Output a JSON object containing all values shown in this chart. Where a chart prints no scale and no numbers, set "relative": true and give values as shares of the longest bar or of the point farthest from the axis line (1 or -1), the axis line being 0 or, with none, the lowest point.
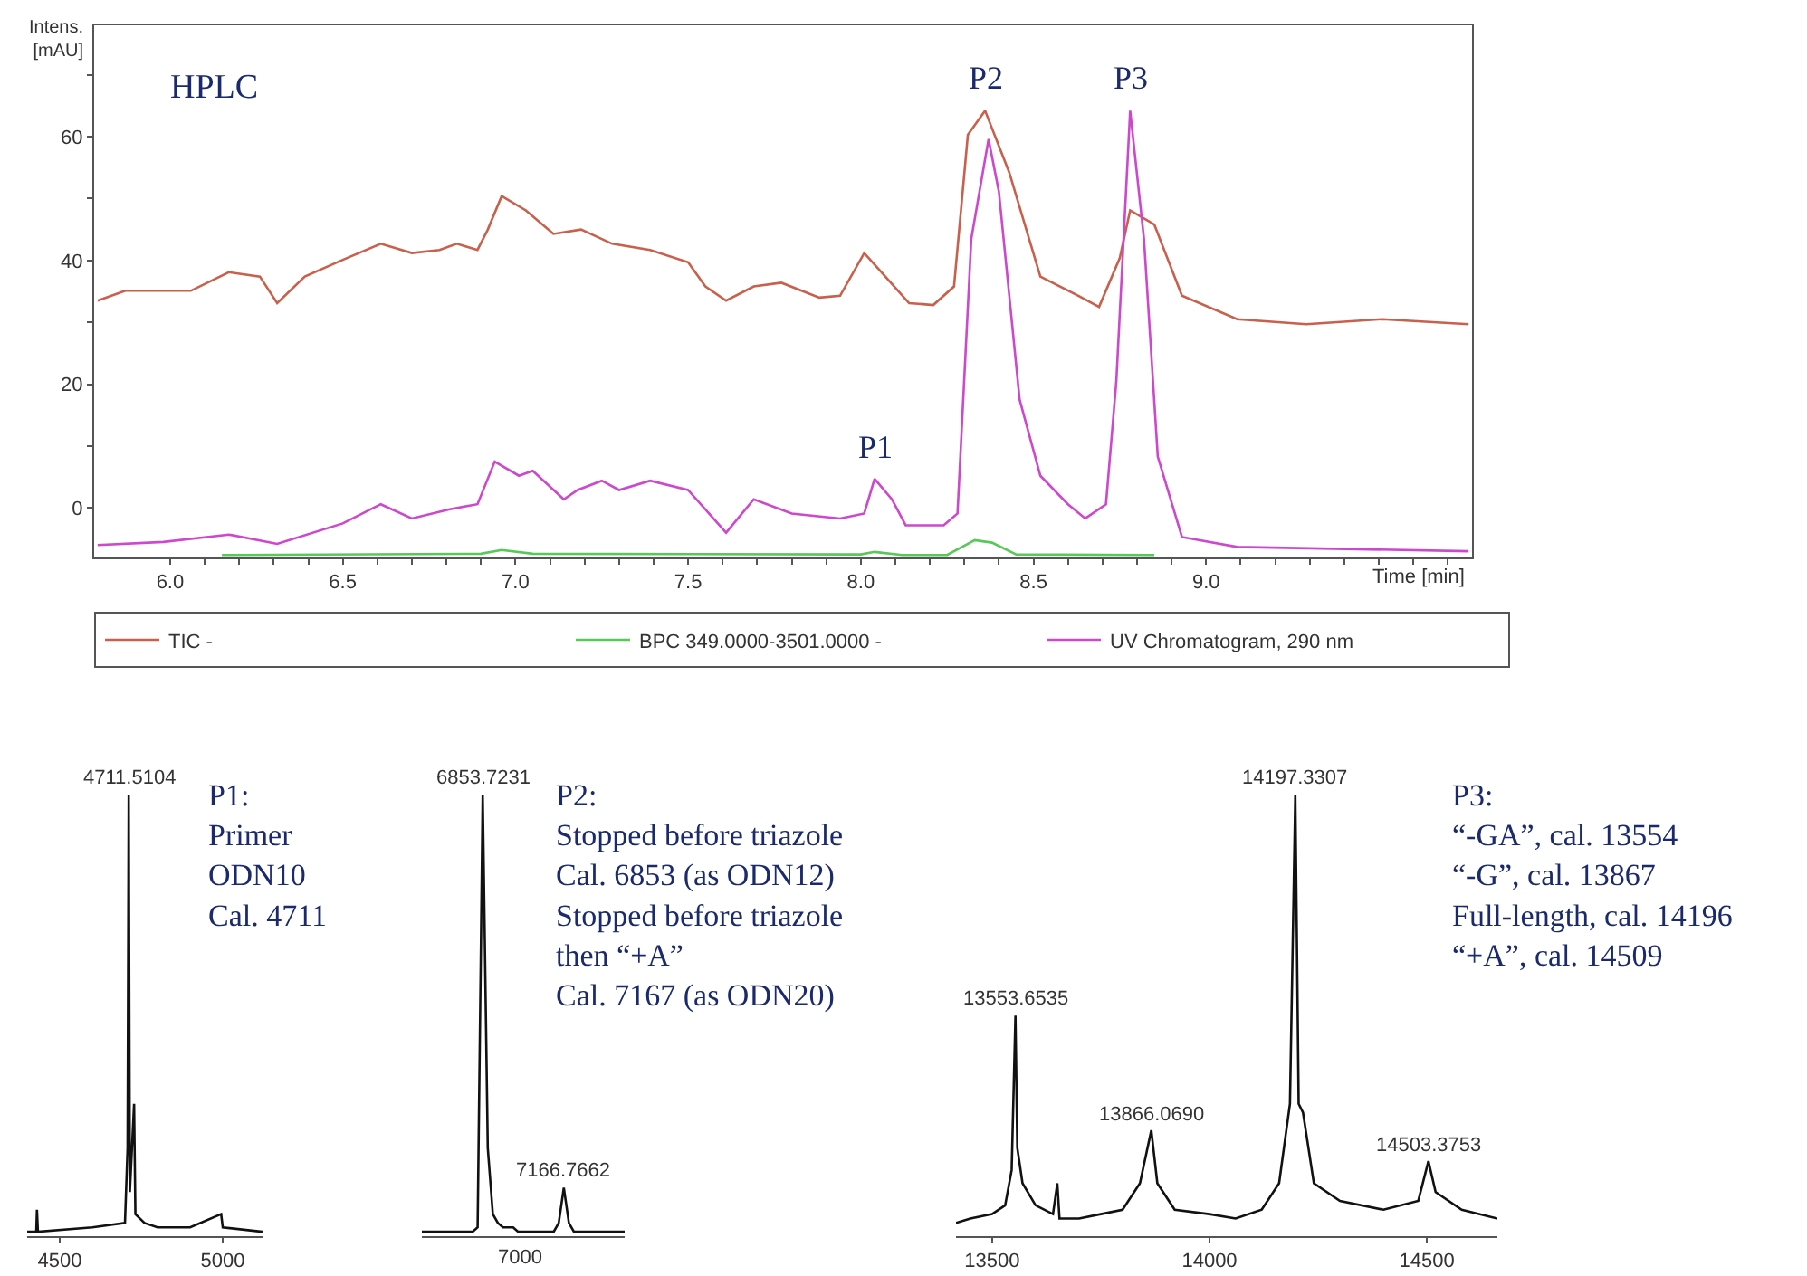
{
  "chart_data": [
    {
      "type": "line",
      "ylabel": "Intens.\n[mAU]",
      "xlabel": "Time [min]",
      "xlim": [
        5.78,
        9.77
      ],
      "ylim": [
        -8,
        78
      ],
      "xticks": [
        {
          "value": 6,
          "label": "6.0"
        },
        {
          "value": 6.1,
          "label": null
        },
        {
          "value": 6.2,
          "label": null
        },
        {
          "value": 6.3,
          "label": null
        },
        {
          "value": 6.4,
          "label": null
        },
        {
          "value": 6.5,
          "label": "6.5"
        },
        {
          "value": 6.6,
          "label": null
        },
        {
          "value": 6.7,
          "label": null
        },
        {
          "value": 6.8,
          "label": null
        },
        {
          "value": 6.9,
          "label": null
        },
        {
          "value": 7,
          "label": "7.0"
        },
        {
          "value": 7.1,
          "label": null
        },
        {
          "value": 7.2,
          "label": null
        },
        {
          "value": 7.3,
          "label": null
        },
        {
          "value": 7.4,
          "label": null
        },
        {
          "value": 7.5,
          "label": "7.5"
        },
        {
          "value": 7.6,
          "label": null
        },
        {
          "value": 7.7,
          "label": null
        },
        {
          "value": 7.8,
          "label": null
        },
        {
          "value": 7.9,
          "label": null
        },
        {
          "value": 8,
          "label": "8.0"
        },
        {
          "value": 8.1,
          "label": null
        },
        {
          "value": 8.2,
          "label": null
        },
        {
          "value": 8.3,
          "label": null
        },
        {
          "value": 8.4,
          "label": null
        },
        {
          "value": 8.5,
          "label": "8.5"
        },
        {
          "value": 8.6,
          "label": null
        },
        {
          "value": 8.7,
          "label": null
        },
        {
          "value": 8.8,
          "label": null
        },
        {
          "value": 8.9,
          "label": null
        },
        {
          "value": 9,
          "label": "9.0"
        },
        {
          "value": 9.1,
          "label": null
        },
        {
          "value": 9.2,
          "label": null
        },
        {
          "value": 9.3,
          "label": null
        },
        {
          "value": 9.4,
          "label": null
        },
        {
          "value": 9.5,
          "label": null
        },
        {
          "value": 9.6,
          "label": null
        },
        {
          "value": 9.7,
          "label": null
        }
      ],
      "yticks": [
        0,
        {
          "value": 10,
          "label": null
        },
        20,
        {
          "value": 30,
          "label": null
        },
        40,
        {
          "value": 50,
          "label": null
        },
        60,
        {
          "value": 70,
          "label": null
        }
      ],
      "legend": "bottom",
      "marker": "none",
      "line_style": "solid",
      "annotations": [
        "HPLC",
        {
          "text": "P1",
          "x": 8.04,
          "y": 4.7
        },
        {
          "text": "P2",
          "x": 8.36,
          "y": 64.2
        },
        {
          "text": "P3",
          "x": 8.78,
          "y": 64.2
        }
      ],
      "series": [
        {
          "name": "TIC -",
          "color": "#c8604c",
          "x": [
            5.79,
            5.87,
            6.06,
            6.17,
            6.26,
            6.31,
            6.39,
            6.5,
            6.61,
            6.7,
            6.78,
            6.83,
            6.89,
            6.92,
            6.96,
            7.03,
            7.11,
            7.19,
            7.28,
            7.39,
            7.5,
            7.55,
            7.61,
            7.69,
            7.77,
            7.88,
            7.94,
            8.01,
            8.06,
            8.14,
            8.21,
            8.27,
            8.31,
            8.36,
            8.43,
            8.52,
            8.63,
            8.69,
            8.75,
            8.78,
            8.85,
            8.93,
            9.09,
            9.29,
            9.51,
            9.76
          ],
          "values": [
            33.5,
            35.1,
            35.1,
            38.1,
            37.4,
            33.1,
            37.4,
            40.1,
            42.7,
            41.2,
            41.7,
            42.7,
            41.7,
            45,
            50.4,
            48.1,
            44.3,
            45,
            42.7,
            41.7,
            39.7,
            35.8,
            33.5,
            35.8,
            36.4,
            34,
            34.3,
            41.2,
            38.1,
            33.1,
            32.8,
            35.8,
            60.3,
            64.2,
            54.2,
            37.4,
            34.3,
            32.5,
            40.4,
            48.1,
            45.8,
            34.3,
            30.5,
            29.7,
            30.5,
            29.7
          ]
        },
        {
          "name": "BPC 349.0000-3501.0000 -",
          "color": "#58c858",
          "x": [
            6.15,
            6.9,
            6.96,
            7.05,
            8.0,
            8.04,
            8.12,
            8.25,
            8.33,
            8.38,
            8.45,
            8.85
          ],
          "values": [
            -7.6,
            -7.4,
            -6.8,
            -7.4,
            -7.5,
            -7.1,
            -7.6,
            -7.6,
            -5.2,
            -5.6,
            -7.5,
            -7.6
          ]
        },
        {
          "name": "UV Chromatogram, 290 nm",
          "color": "#cc48cc",
          "x": [
            5.79,
            5.98,
            6.17,
            6.31,
            6.5,
            6.61,
            6.7,
            6.81,
            6.89,
            6.94,
            7.01,
            7.05,
            7.14,
            7.18,
            7.25,
            7.3,
            7.39,
            7.5,
            7.61,
            7.69,
            7.8,
            7.94,
            8.01,
            8.04,
            8.09,
            8.13,
            8.24,
            8.28,
            8.32,
            8.37,
            8.4,
            8.46,
            8.52,
            8.6,
            8.65,
            8.71,
            8.74,
            8.78,
            8.82,
            8.86,
            8.93,
            9.09,
            9.76
          ],
          "values": [
            -6,
            -5.5,
            -4.3,
            -5.8,
            -2.5,
            0.6,
            -1.7,
            -0.2,
            0.6,
            7.5,
            5.2,
            6,
            1.4,
            2.9,
            4.4,
            2.9,
            4.4,
            2.9,
            -4,
            1.4,
            -0.9,
            -1.7,
            -0.9,
            4.7,
            1.4,
            -2.8,
            -2.8,
            -0.9,
            43.5,
            59.6,
            51.1,
            17.5,
            5.2,
            0.6,
            -1.7,
            0.6,
            20.5,
            64.2,
            43.5,
            8.3,
            -4.7,
            -6.3,
            -7
          ]
        }
      ]
    },
    {
      "type": "line",
      "relative": true,
      "xlim": [
        4400,
        5122
      ],
      "xticks": [
        4500,
        5000
      ],
      "marker": "none",
      "annotations": [
        "P1:\nPrimer\nODN10\nCal. 4711",
        {
          "text": "4711.5104",
          "x": 4711.5,
          "y": 1
        }
      ],
      "series": [
        {
          "color": "#111111",
          "x": [
            4400,
            4428,
            4430,
            4433,
            4600,
            4700,
            4708,
            4711.5,
            4715,
            4728,
            4732,
            4760,
            4800,
            4900,
            4995,
            5000,
            5122
          ],
          "values": [
            0.01,
            0.01,
            0.06,
            0.01,
            0.02,
            0.03,
            0.2,
            1,
            0.1,
            0.3,
            0.05,
            0.03,
            0.02,
            0.02,
            0.05,
            0.02,
            0.01
          ]
        }
      ]
    },
    {
      "type": "line",
      "relative": true,
      "marker": "none",
      "annotations": [
        "P2:\nStopped before triazole\nCal. 6853 (as ODN12)\nStopped before triazole\nthen “+A”\nCal. 7167 (as ODN20)",
        {
          "text": "6853.7231",
          "y": 1
        },
        {
          "text": "7166.7662",
          "y": 0.11
        },
        "7000"
      ],
      "categories": [
        null,
        null,
        null,
        null,
        null,
        null,
        null,
        null,
        null,
        null,
        null,
        null,
        null,
        null,
        null,
        null,
        null,
        null,
        null,
        null,
        null,
        null,
        null,
        null,
        null,
        null,
        null,
        null,
        null,
        null,
        null,
        null,
        null,
        null,
        null,
        null,
        null,
        null,
        null,
        null,
        null
      ],
      "series": [
        {
          "color": "#111111",
          "values": [
            0.01,
            0.01,
            0.01,
            0.01,
            0.01,
            0.01,
            0.01,
            0.01,
            0.01,
            0.01,
            0.01,
            0.02,
            1,
            0.2,
            0.05,
            0.03,
            0.02,
            0.02,
            0.02,
            0.01,
            0.01,
            0.01,
            0.01,
            0.01,
            0.01,
            0.01,
            0.01,
            0.03,
            0.11,
            0.03,
            0.01,
            0.01,
            0.01,
            0.01,
            0.01,
            0.01,
            0.01,
            0.01,
            0.01,
            0.01,
            0.01
          ]
        }
      ]
    },
    {
      "type": "line",
      "relative": true,
      "xlim": [
        13417,
        14662
      ],
      "xticks": [
        13500,
        14000,
        14500
      ],
      "marker": "none",
      "annotations": [
        "P3:\n“-GA”, cal. 13554\n“-G”, cal. 13867\nFull-length, cal. 14196\n“+A”, cal. 14509",
        {
          "text": "13553.6535",
          "x": 13553.7,
          "y": 0.5
        },
        {
          "text": "13866.0690",
          "x": 13866.1,
          "y": 0.24
        },
        {
          "text": "14197.3307",
          "x": 14197.3,
          "y": 1
        },
        {
          "text": "14503.3753",
          "x": 14503.4,
          "y": 0.17
        }
      ],
      "series": [
        {
          "color": "#111111",
          "x": [
            13417,
            13450,
            13500,
            13530,
            13545,
            13553.7,
            13558,
            13570,
            13600,
            13640,
            13650,
            13655,
            13700,
            13750,
            13800,
            13840,
            13866.1,
            13880,
            13920,
            14000,
            14060,
            14120,
            14160,
            14185,
            14197.3,
            14205,
            14215,
            14240,
            14300,
            14400,
            14480,
            14503.4,
            14520,
            14580,
            14662
          ],
          "values": [
            0.03,
            0.04,
            0.05,
            0.07,
            0.15,
            0.5,
            0.2,
            0.12,
            0.07,
            0.05,
            0.12,
            0.04,
            0.04,
            0.05,
            0.06,
            0.12,
            0.24,
            0.12,
            0.06,
            0.05,
            0.04,
            0.06,
            0.12,
            0.3,
            1,
            0.3,
            0.28,
            0.12,
            0.08,
            0.06,
            0.08,
            0.17,
            0.1,
            0.06,
            0.04
          ]
        }
      ]
    }
  ]
}
